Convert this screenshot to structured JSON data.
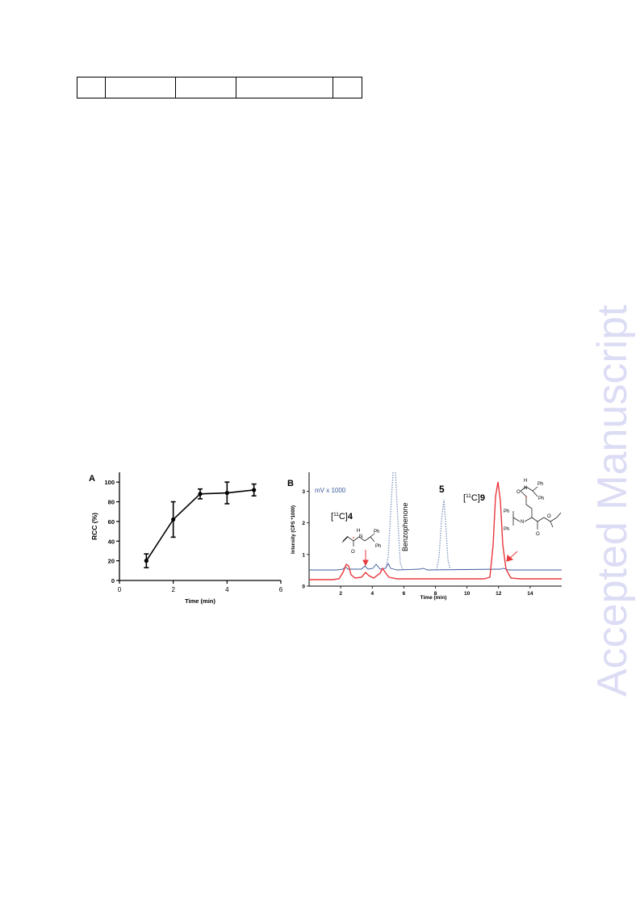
{
  "table": {
    "columns": 5,
    "cells": [
      "",
      "",
      "",
      "",
      ""
    ]
  },
  "watermark": {
    "text": "Accepted Manuscript",
    "color": "#dcdcf5"
  },
  "panel_a": {
    "label": "A",
    "chart_data": {
      "type": "line",
      "xlabel": "Time (min)",
      "ylabel": "RCC (%)",
      "xlim": [
        0,
        6
      ],
      "ylim": [
        0,
        110
      ],
      "xticks": [
        0,
        2,
        4,
        6
      ],
      "yticks": [
        0,
        20,
        40,
        60,
        80,
        100
      ],
      "x": [
        1,
        2,
        3,
        4,
        5
      ],
      "y": [
        20,
        62,
        88,
        89,
        92
      ],
      "yerr": [
        7,
        18,
        5,
        11,
        6
      ],
      "grid": false,
      "color": "#000000"
    }
  },
  "panel_b": {
    "label": "B",
    "chart_data": {
      "type": "line",
      "xlabel": "Time (min)",
      "ylabel": "Intensity (CPS *1000)",
      "xlim": [
        0,
        16
      ],
      "ylim": [
        0,
        3.6
      ],
      "xticks": [
        2,
        4,
        6,
        8,
        10,
        12,
        14
      ],
      "yticks": [
        0,
        1,
        2,
        3
      ],
      "grid": false,
      "series_colors": {
        "radio": "#e8383d",
        "uv": "#3d5a9c",
        "uv_dotted": "#7f93bd"
      },
      "annotations": {
        "uv_units": "mV x 1000",
        "benzophenone": "Benzophenone",
        "compound5": "5",
        "c11_4_pre": "[",
        "c11_4_sup": "11",
        "c11_4_mid": "C]",
        "c11_4_num": "4",
        "c11_9_pre": "[",
        "c11_9_sup": "11",
        "c11_9_mid": "C]",
        "c11_9_num": "9"
      },
      "structure_labels": {
        "ph": "Ph",
        "n": "N",
        "h": "H",
        "o": "O"
      }
    }
  }
}
